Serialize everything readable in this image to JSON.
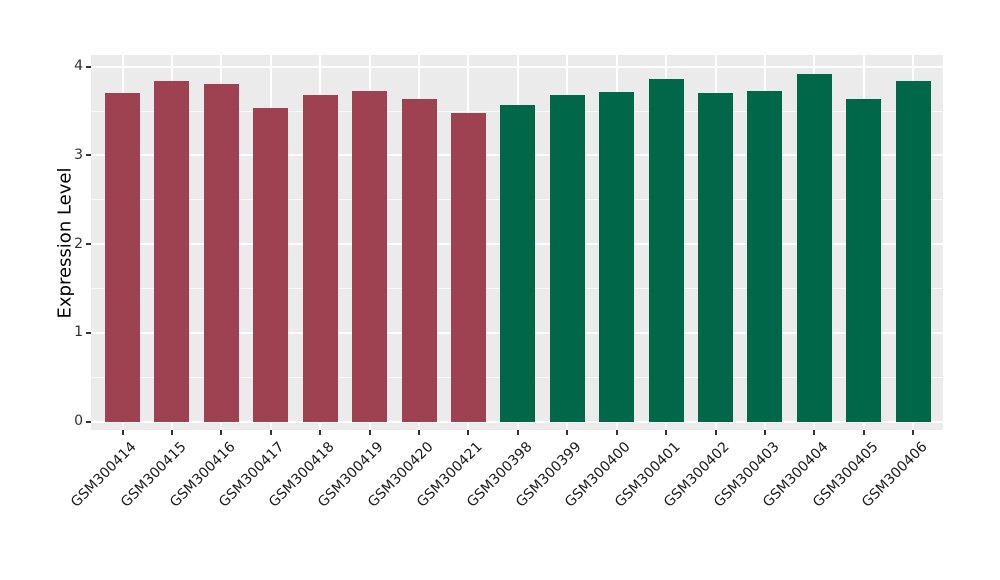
{
  "chart_data": {
    "type": "bar",
    "title": "",
    "xlabel": "",
    "ylabel": "Expression Level",
    "ylim": [
      -0.09,
      4.13
    ],
    "yticks": [
      0,
      1,
      2,
      3,
      4
    ],
    "ytick_labels": [
      "0",
      "1",
      "2",
      "3",
      "4"
    ],
    "grid": true,
    "legend": false,
    "panel_bg": "#ebebeb",
    "grid_color": "#ffffff",
    "tick_color": "#333333",
    "bar_group_colors": [
      "#9e4151",
      "#006849"
    ],
    "categories": [
      "GSM300414",
      "GSM300415",
      "GSM300416",
      "GSM300417",
      "GSM300418",
      "GSM300419",
      "GSM300420",
      "GSM300421",
      "GSM300398",
      "GSM300399",
      "GSM300400",
      "GSM300401",
      "GSM300402",
      "GSM300403",
      "GSM300404",
      "GSM300405",
      "GSM300406"
    ],
    "values": [
      3.7,
      3.84,
      3.81,
      3.53,
      3.68,
      3.73,
      3.64,
      3.48,
      3.57,
      3.68,
      3.72,
      3.86,
      3.7,
      3.73,
      3.92,
      3.64,
      3.84
    ],
    "bar_colors": [
      "#9e4151",
      "#9e4151",
      "#9e4151",
      "#9e4151",
      "#9e4151",
      "#9e4151",
      "#9e4151",
      "#9e4151",
      "#006849",
      "#006849",
      "#006849",
      "#006849",
      "#006849",
      "#006849",
      "#006849",
      "#006849",
      "#006849"
    ]
  }
}
